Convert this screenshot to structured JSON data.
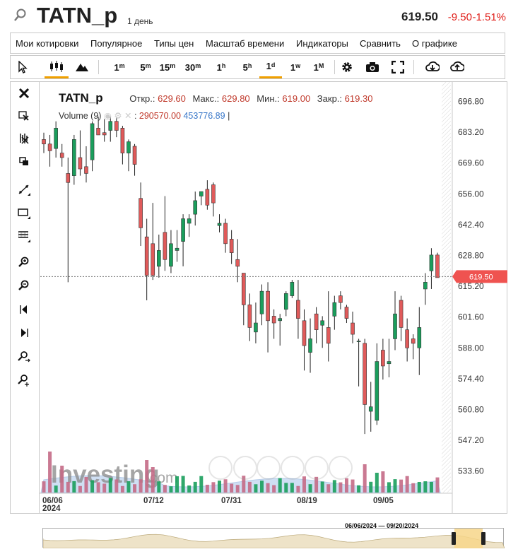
{
  "header": {
    "ticker": "TATN_p",
    "interval": "1 день",
    "price": "619.50",
    "change_abs": "-9.50",
    "change_pct": "-1.51%"
  },
  "menu": [
    "Мои котировки",
    "Популярное",
    "Типы цен",
    "Масштаб времени",
    "Индикаторы",
    "Сравнить",
    "О графике"
  ],
  "toolbar": {
    "timeframes": [
      {
        "base": "1",
        "sup": "m"
      },
      {
        "base": "5",
        "sup": "m"
      },
      {
        "base": "15",
        "sup": "m"
      },
      {
        "base": "30",
        "sup": "m"
      },
      {
        "base": "1",
        "sup": "h"
      },
      {
        "base": "5",
        "sup": "h"
      },
      {
        "base": "1",
        "sup": "d"
      },
      {
        "base": "1",
        "sup": "w"
      },
      {
        "base": "1",
        "sup": "M"
      }
    ],
    "selected_timeframe": "1d",
    "icons": [
      "cursor-icon",
      "candlestick-icon",
      "mountain-icon",
      "gear-icon",
      "camera-icon",
      "fullscreen-icon",
      "download-icon",
      "upload-icon"
    ]
  },
  "left_tools": [
    "close-icon",
    "crosshair-icon",
    "delete-drawings-icon",
    "layers-icon",
    "trendline-icon",
    "rectangle-icon",
    "fibonacci-icon",
    "zoom-in-icon",
    "zoom-out-icon",
    "scroll-left-icon",
    "scroll-right-icon",
    "zoom-reset-icon",
    "zoom-fit-icon"
  ],
  "legend": {
    "name": "TATN_p",
    "open_label": "Откр.:",
    "open": "629.60",
    "high_label": "Макс.:",
    "high": "629.80",
    "low_label": "Мин.:",
    "low": "619.00",
    "close_label": "Закр.:",
    "close": "619.30",
    "volume_label": "Volume (9)",
    "volume_value": "290570.00",
    "volume_ma": "453776.89"
  },
  "watermark": {
    "brand": "Investing",
    "suffix": ".com"
  },
  "navigator": {
    "range_label": "06/06/2024 — 09/20/2024"
  },
  "colors": {
    "up": "#1a9e5c",
    "down": "#e05a5a",
    "last_price_tag": "#ef5350",
    "selected_tab": "#f0a000"
  },
  "chart_data": {
    "type": "candlestick",
    "y_axis_ticks": [
      "696.80",
      "683.20",
      "669.60",
      "656.00",
      "642.40",
      "628.80",
      "615.20",
      "601.60",
      "588.00",
      "574.40",
      "560.80",
      "547.20",
      "533.60"
    ],
    "x_axis_labels": [
      "06/06\n2024",
      "07/12",
      "07/31",
      "08/19",
      "09/05"
    ],
    "last_price": "619.50",
    "ylim": [
      525,
      705
    ],
    "candles": [
      [
        680,
        683,
        674,
        678
      ],
      [
        678,
        682,
        668,
        675
      ],
      [
        676,
        688,
        672,
        685
      ],
      [
        674,
        678,
        668,
        672
      ],
      [
        665,
        672,
        617,
        661
      ],
      [
        664,
        682,
        660,
        680
      ],
      [
        672,
        684,
        664,
        667
      ],
      [
        668,
        677,
        661,
        665
      ],
      [
        671,
        688,
        666,
        687
      ],
      [
        685,
        690,
        682,
        682
      ],
      [
        683,
        689,
        679,
        682
      ],
      [
        684,
        690,
        679,
        688
      ],
      [
        688,
        690,
        681,
        684
      ],
      [
        685,
        686,
        669,
        674
      ],
      [
        674,
        680,
        666,
        679
      ],
      [
        677,
        678,
        664,
        669
      ],
      [
        654,
        661,
        633,
        641
      ],
      [
        637,
        645,
        609,
        620
      ],
      [
        634,
        652,
        618,
        620
      ],
      [
        624,
        638,
        619,
        631
      ],
      [
        639,
        655,
        622,
        627
      ],
      [
        624,
        640,
        621,
        634
      ],
      [
        631,
        640,
        626,
        632
      ],
      [
        635,
        647,
        624,
        645
      ],
      [
        643,
        647,
        637,
        645
      ],
      [
        647,
        657,
        642,
        653
      ],
      [
        655,
        657,
        651,
        657
      ],
      [
        658,
        662,
        649,
        651
      ],
      [
        660,
        661,
        646,
        652
      ],
      [
        642,
        647,
        639,
        643
      ],
      [
        643,
        645,
        630,
        634
      ],
      [
        636,
        640,
        625,
        630
      ],
      [
        627,
        636,
        617,
        624
      ],
      [
        621,
        621,
        598,
        607
      ],
      [
        607,
        612,
        591,
        597
      ],
      [
        595,
        608,
        590,
        599
      ],
      [
        603,
        616,
        598,
        613
      ],
      [
        613,
        617,
        586,
        600
      ],
      [
        602,
        605,
        592,
        599
      ],
      [
        600,
        603,
        589,
        601
      ],
      [
        605,
        613,
        602,
        612
      ],
      [
        611,
        618,
        610,
        617
      ],
      [
        609,
        618,
        592,
        601
      ],
      [
        600,
        605,
        578,
        589
      ],
      [
        586,
        601,
        577,
        592
      ],
      [
        603,
        606,
        590,
        596
      ],
      [
        598,
        602,
        588,
        600
      ],
      [
        597,
        613,
        582,
        590
      ],
      [
        602,
        611,
        596,
        608
      ],
      [
        611,
        613,
        605,
        608
      ],
      [
        606,
        607,
        599,
        601
      ],
      [
        599,
        604,
        590,
        594
      ],
      [
        591,
        592,
        571,
        591
      ],
      [
        590,
        592,
        550,
        563
      ],
      [
        560,
        573,
        551,
        562
      ],
      [
        556,
        590,
        554,
        582
      ],
      [
        587,
        592,
        574,
        580
      ],
      [
        581,
        592,
        575,
        582
      ],
      [
        592,
        613,
        587,
        603
      ],
      [
        609,
        611,
        591,
        597
      ],
      [
        596,
        601,
        582,
        588
      ],
      [
        592,
        594,
        583,
        590
      ],
      [
        588,
        606,
        576,
        597
      ],
      [
        614,
        621,
        607,
        617
      ],
      [
        622,
        632,
        614,
        629
      ],
      [
        629,
        630,
        619,
        619
      ]
    ],
    "volume_ma_shape": "light-blue area behind volume bars"
  }
}
